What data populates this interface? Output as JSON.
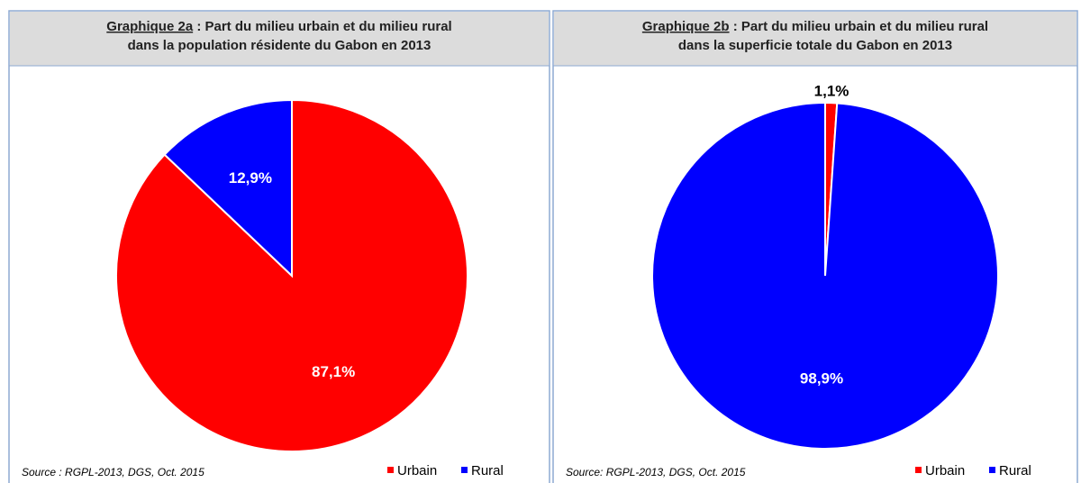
{
  "chart_data": [
    {
      "type": "pie",
      "title_prefix": "Graphique 2a",
      "title": ": Part du milieu urbain et du milieu rural dans la population résidente du Gabon en 2013",
      "categories": [
        "Urbain",
        "Rural"
      ],
      "values": [
        87.1,
        12.9
      ],
      "value_labels": [
        "87,1%",
        "12,9%"
      ],
      "colors": [
        "#ff0000",
        "#0000ff"
      ],
      "source": "Source : RGPL-2013,  DGS, Oct. 2015"
    },
    {
      "type": "pie",
      "title_prefix": "Graphique 2b",
      "title": ": Part du milieu urbain et du milieu rural dans la superficie totale du Gabon en 2013",
      "categories": [
        "Urbain",
        "Rural"
      ],
      "values": [
        1.1,
        98.9
      ],
      "value_labels": [
        "1,1%",
        "98,9%"
      ],
      "colors": [
        "#ff0000",
        "#0000ff"
      ],
      "source": "Source: RGPL-2013,  DGS,  Oct. 2015"
    }
  ]
}
